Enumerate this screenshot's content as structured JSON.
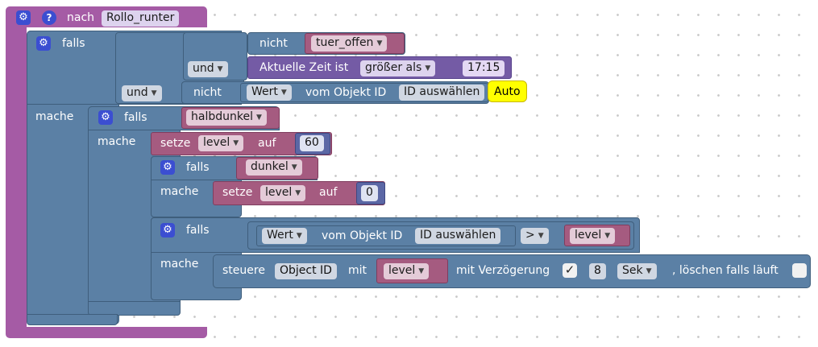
{
  "colors": {
    "event_block": "#a55ba5",
    "logic_block": "#5b80a5",
    "variable_block": "#a55b80",
    "time_block": "#745ba5",
    "number_block": "#5b67a5",
    "gear_badge": "#3b4ed1",
    "comment_highlight": "#ffff00"
  },
  "event": {
    "label": "nach",
    "value": "Rollo_runter",
    "help_icon": "question-mark-icon",
    "settings_icon": "gear-icon"
  },
  "outer_if": {
    "falls_label": "falls",
    "mache_label": "mache",
    "conditions": {
      "not1_label": "nicht",
      "tuer_offen": "tuer_offen",
      "und1_label": "und",
      "time_label": "Aktuelle Zeit ist",
      "time_op": "größer als",
      "time_value": "17:15",
      "und2_label": "und",
      "not2_label": "nicht",
      "wert_label": "Wert",
      "vom_objekt_label": "vom Objekt ID",
      "id_select": "ID auswählen",
      "comment": "Auto"
    }
  },
  "inner_if1": {
    "falls_label": "falls",
    "mache_label": "mache",
    "condition": "halbdunkel",
    "set_label": "setze",
    "var": "level",
    "auf_label": "auf",
    "value": "60"
  },
  "inner_if2": {
    "falls_label": "falls",
    "mache_label": "mache",
    "condition": "dunkel",
    "set_label": "setze",
    "var": "level",
    "auf_label": "auf",
    "value": "0"
  },
  "inner_if3": {
    "falls_label": "falls",
    "mache_label": "mache",
    "wert_label": "Wert",
    "vom_objekt_label": "vom Objekt ID",
    "id_select": "ID auswählen",
    "operator": ">",
    "var": "level",
    "control": {
      "steuere_label": "steuere",
      "object_field": "Object ID",
      "mit_label": "mit",
      "var": "level",
      "delay_label": "mit Verzögerung",
      "delay_checked": "✓",
      "delay_value": "8",
      "unit": "Sek",
      "clear_label": ", löschen falls läuft"
    }
  }
}
